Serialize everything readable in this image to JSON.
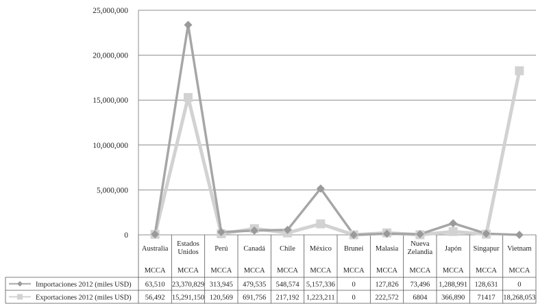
{
  "chart_data": {
    "type": "line",
    "categories": [
      [
        "Australia"
      ],
      [
        "Estados",
        "Unidos"
      ],
      [
        "Perú"
      ],
      [
        "Canadá"
      ],
      [
        "Chile"
      ],
      [
        "México"
      ],
      [
        "Brunei"
      ],
      [
        "Malasia"
      ],
      [
        "Nueva",
        "Zelandia"
      ],
      [
        "Japón"
      ],
      [
        "Singapur"
      ],
      [
        "Vietnam"
      ]
    ],
    "group_labels": [
      "MCCA",
      "MCCA",
      "MCCA",
      "MCCA",
      "MCCA",
      "MCCA",
      "MCCA",
      "MCCA",
      "MCCA",
      "MCCA",
      "MCCA",
      "MCCA"
    ],
    "ylim": [
      0,
      25000000
    ],
    "yticks": [
      0,
      5000000,
      10000000,
      15000000,
      20000000,
      25000000
    ],
    "ytick_labels": [
      "0",
      "5,000,000",
      "10,000,000",
      "15,000,000",
      "20,000,000",
      "25,000,000"
    ],
    "grid": true,
    "series": [
      {
        "name": "Importaciones 2012 (miles USD)",
        "color": "#a6a6a6",
        "marker": "diamond",
        "values": [
          63510,
          23370829,
          313945,
          479535,
          548574,
          5157336,
          0,
          127826,
          73496,
          1288991,
          128631,
          0
        ],
        "labels": [
          "63,510",
          "23,370,829",
          "313,945",
          "479,535",
          "548,574",
          "5,157,336",
          "0",
          "127,826",
          "73,496",
          "1,288,991",
          "128,631",
          "0"
        ]
      },
      {
        "name": "Exportaciones 2012 (miles USD)",
        "color": "#d2d2d2",
        "marker": "square",
        "values": [
          56492,
          15291150,
          120569,
          691756,
          217192,
          1223211,
          0,
          222572,
          6804,
          366890,
          71417,
          18268053
        ],
        "labels": [
          "56,492",
          "15,291,150",
          "120,569",
          "691,756",
          "217,192",
          "1,223,211",
          "0",
          "222,572",
          "6804",
          "366,890",
          "71417",
          "18,268,053"
        ]
      }
    ]
  }
}
